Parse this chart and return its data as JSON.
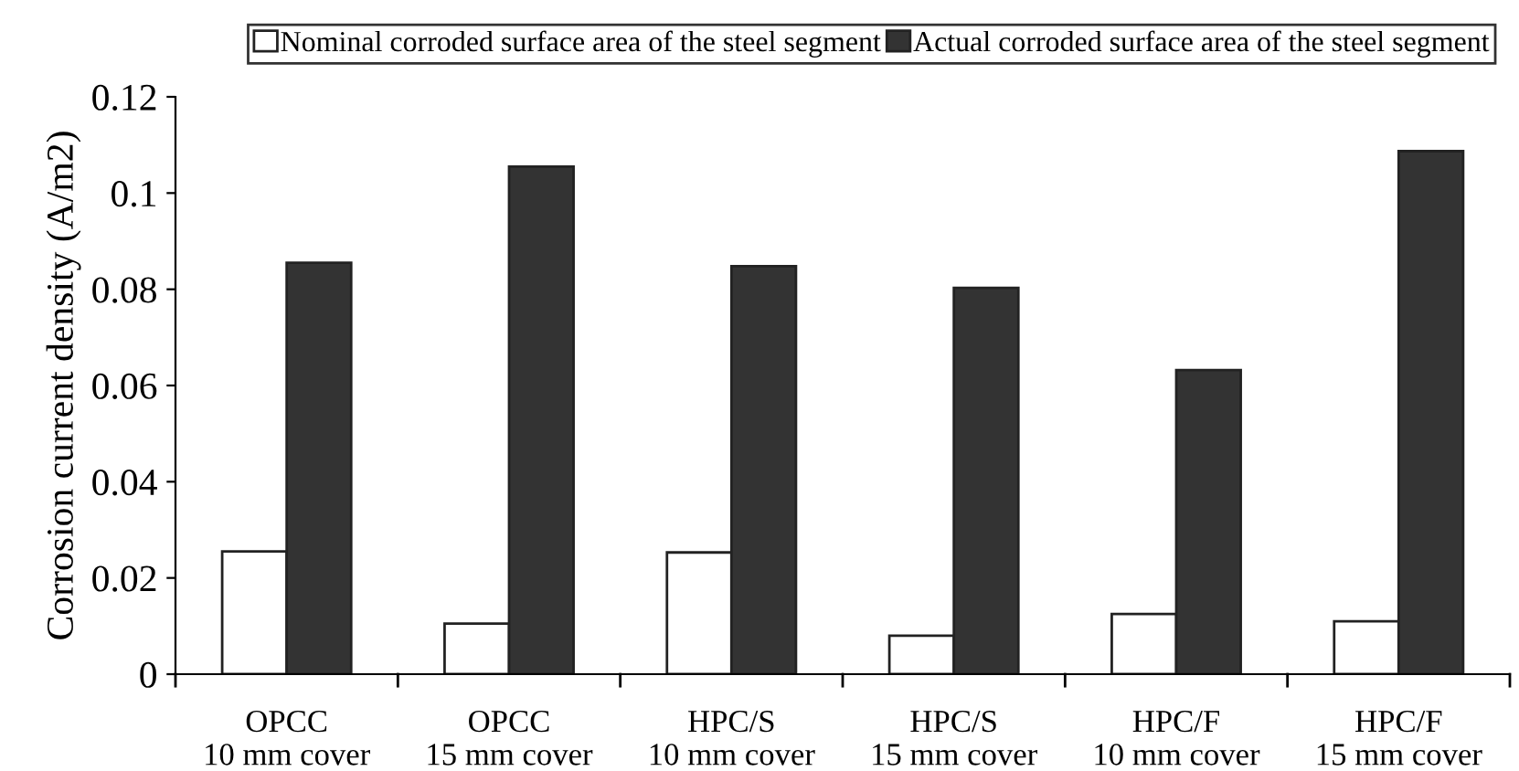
{
  "chart_data": {
    "type": "bar",
    "ylabel": "Corrosion current density (A/m2)",
    "categories": [
      "OPCC\n10 mm cover",
      "OPCC\n15 mm cover",
      "HPC/S\n10 mm cover",
      "HPC/S\n15 mm cover",
      "HPC/F\n10 mm cover",
      "HPC/F\n15 mm cover"
    ],
    "series": [
      {
        "name": "Nominal corroded surface area of the steel segment",
        "color": "#ffffff",
        "values": [
          0.0255,
          0.0105,
          0.0253,
          0.008,
          0.0125,
          0.011
        ]
      },
      {
        "name": "Actual corroded surface area of the steel segment",
        "color": "#333333",
        "values": [
          0.0855,
          0.1055,
          0.0848,
          0.0803,
          0.0632,
          0.1087
        ]
      }
    ],
    "ylim": [
      0,
      0.12
    ],
    "yticks": [
      {
        "value": 0,
        "label": "0"
      },
      {
        "value": 0.02,
        "label": "0.02"
      },
      {
        "value": 0.04,
        "label": "0.04"
      },
      {
        "value": 0.06,
        "label": "0.06"
      },
      {
        "value": 0.08,
        "label": "0.08"
      },
      {
        "value": 0.1,
        "label": "0.1"
      },
      {
        "value": 0.12,
        "label": "0.12"
      }
    ],
    "grid": false,
    "legend": "top"
  }
}
